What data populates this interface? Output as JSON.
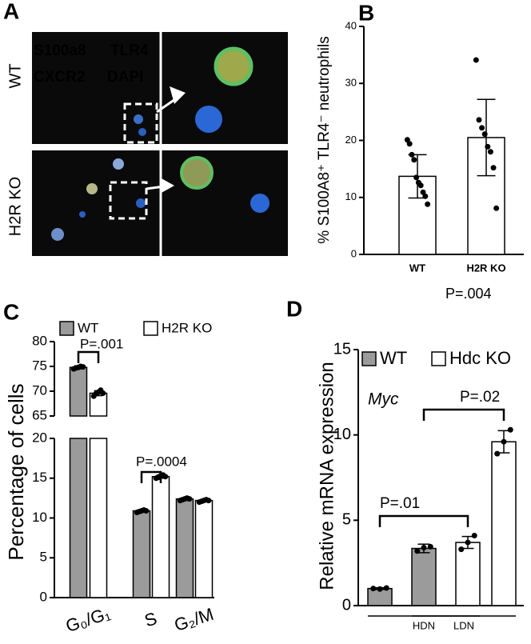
{
  "panel_a": {
    "label": "A",
    "rows": [
      "WT",
      "H2R KO"
    ],
    "stains": [
      {
        "text": "S100a8",
        "color": "#2fb34a"
      },
      {
        "text": "TLR4",
        "color": "#e8242a"
      },
      {
        "text": "CXCR2",
        "color": "#ffffff"
      },
      {
        "text": "DAPI",
        "color": "#2f86d6"
      }
    ]
  },
  "chart_data": [
    {
      "panel": "B",
      "type": "bar",
      "ylabel": "% S100A8⁺ TLR4⁻ neutrophils",
      "categories": [
        "WT",
        "H2R KO"
      ],
      "series": [
        {
          "color": "#ffffff",
          "values": [
            13.7,
            20.5
          ],
          "errors": [
            3.8,
            6.7
          ],
          "points": [
            [
              20.1,
              19.4,
              17.5,
              16.6,
              13.5,
              12.6,
              12.1,
              10.9,
              10.2,
              8.8
            ],
            [
              34.1,
              23.6,
              22.2,
              21.1,
              18.9,
              18.0,
              15.2,
              8.1
            ]
          ]
        }
      ],
      "ylim": [
        0,
        40
      ],
      "yticks": [
        0,
        10,
        20,
        30,
        40
      ],
      "annotations": [
        "P=.004"
      ]
    },
    {
      "panel": "C",
      "type": "bar",
      "ylabel": "Percentage of cells",
      "categories": [
        "G₀/G₁",
        "S",
        "G₂/M"
      ],
      "series": [
        {
          "name": "WT",
          "color": "#9b9b9b",
          "values": [
            74.8,
            10.9,
            12.4
          ],
          "errors": [
            0.3,
            0.1,
            0.1
          ],
          "points": [
            [
              74.5,
              74.7,
              74.8,
              75.0,
              74.9
            ],
            [
              10.7,
              10.8,
              10.9,
              11.0,
              10.9
            ],
            [
              12.2,
              12.3,
              12.4,
              12.5,
              12.4
            ]
          ]
        },
        {
          "name": "H2R KO",
          "color": "#ffffff",
          "values": [
            69.6,
            15.2,
            12.2
          ],
          "errors": [
            0.5,
            0.2,
            0.1
          ],
          "points": [
            [
              69.0,
              69.5,
              69.8,
              70.2,
              69.6
            ],
            [
              15.0,
              15.1,
              15.3,
              15.4,
              15.2
            ],
            [
              12.0,
              12.1,
              12.2,
              12.3,
              12.2
            ]
          ]
        }
      ],
      "ylim": [
        0,
        80
      ],
      "axis_break": [
        20,
        65
      ],
      "yticks": [
        0,
        5,
        10,
        15,
        20,
        65,
        70,
        75,
        80
      ],
      "annotations": [
        "P=.001",
        "P=.0004"
      ]
    },
    {
      "panel": "D",
      "type": "bar",
      "ylabel": "Relative mRNA expression",
      "categories": [
        "HDN",
        "LDN"
      ],
      "series": [
        {
          "name": "WT",
          "color": "#9b9b9b",
          "values": [
            1.0,
            3.35
          ],
          "errors": [
            0.05,
            0.25
          ],
          "points": [
            [
              1.0,
              0.97,
              1.03
            ],
            [
              3.2,
              3.4,
              3.45
            ]
          ]
        },
        {
          "name": "Hdc KO",
          "color": "#ffffff",
          "values": [
            3.7,
            9.6
          ],
          "errors": [
            0.35,
            0.65
          ],
          "points": [
            [
              3.3,
              3.7,
              4.1
            ],
            [
              8.9,
              9.6,
              10.3
            ]
          ]
        }
      ],
      "ylim": [
        0,
        15
      ],
      "yticks": [
        0,
        5,
        10,
        15
      ],
      "annotations": [
        "Myc",
        "P=.01",
        "P=.02"
      ]
    }
  ]
}
